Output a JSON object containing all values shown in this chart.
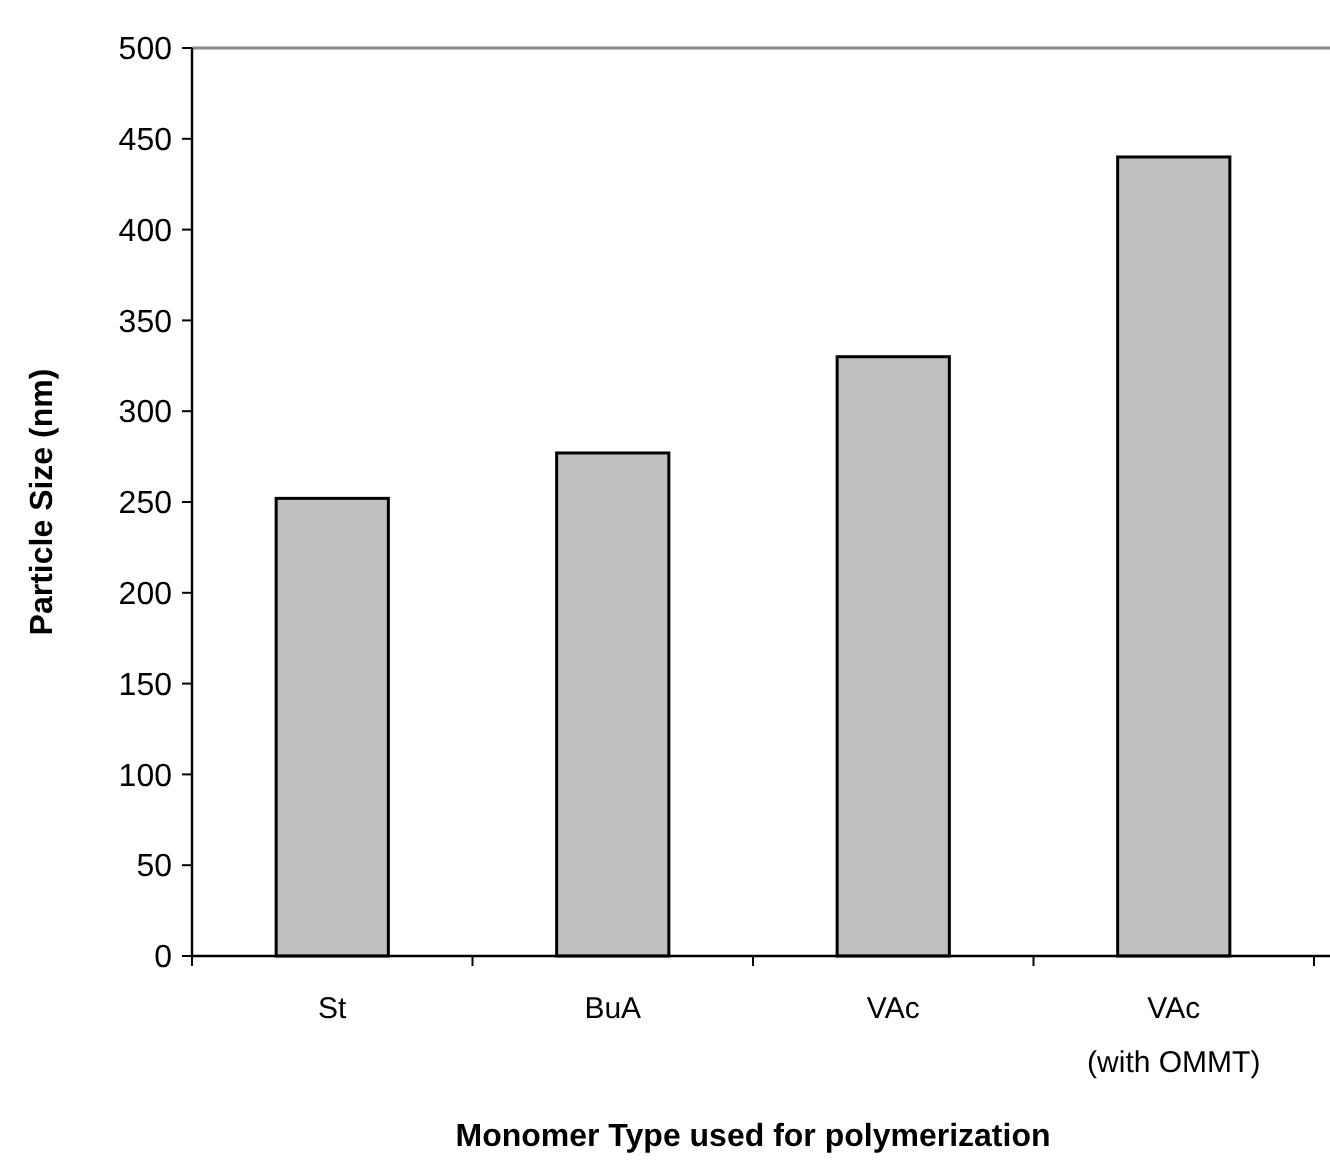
{
  "chart_data": {
    "type": "bar",
    "xlabel": "Monomer Type used for polymerization",
    "ylabel": "Particle Size (nm)",
    "categories": [
      "St",
      "BuA",
      "VAc",
      "VAc\n(with OMMT)"
    ],
    "values": [
      252,
      277,
      330,
      440
    ],
    "color": "#c0c0c0",
    "ylim": [
      0,
      500
    ],
    "yticks": [
      0,
      50,
      100,
      150,
      200,
      250,
      300,
      350,
      400,
      450,
      500
    ],
    "grid": false
  }
}
